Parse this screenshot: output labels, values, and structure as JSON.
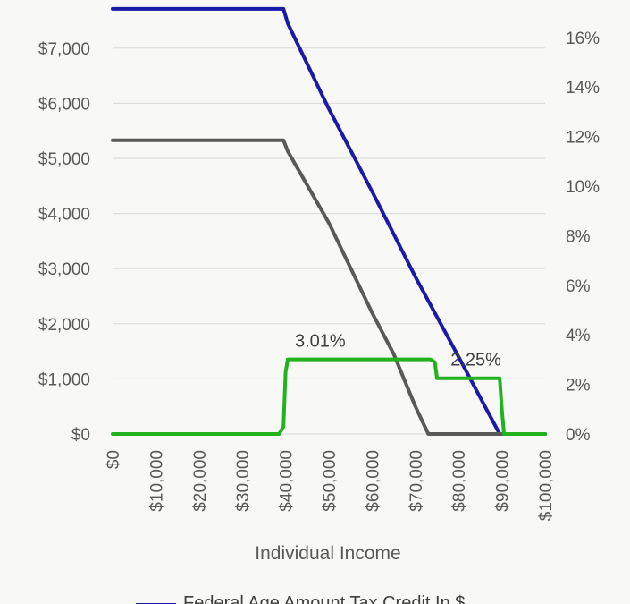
{
  "chart_data": {
    "type": "line",
    "xlabel": "Individual Income",
    "x_ticks": [
      "$0",
      "$10,000",
      "$20,000",
      "$30,000",
      "$40,000",
      "$50,000",
      "$60,000",
      "$70,000",
      "$80,000",
      "$90,000",
      "$100,000"
    ],
    "xlim": [
      0,
      100000
    ],
    "y_left": {
      "ticks": [
        "$0",
        "$1,000",
        "$2,000",
        "$3,000",
        "$4,000",
        "$5,000",
        "$6,000",
        "$7,000"
      ],
      "ylim": [
        0,
        8000
      ]
    },
    "y_right": {
      "ticks": [
        "0%",
        "2%",
        "4%",
        "6%",
        "8%",
        "10%",
        "12%",
        "14%",
        "16%"
      ],
      "ylim": [
        0,
        17.6
      ]
    },
    "grid": "horizontal",
    "legend_position": "bottom",
    "series": [
      {
        "name": "Federal Age Amount Tax Credit In $",
        "axis": "left",
        "color": "#1a1aa6",
        "points": [
          [
            0,
            7713
          ],
          [
            39500,
            7713
          ],
          [
            40500,
            7450
          ],
          [
            46000,
            6550
          ],
          [
            50000,
            5900
          ],
          [
            60000,
            4400
          ],
          [
            70000,
            2850
          ],
          [
            80000,
            1400
          ],
          [
            88000,
            220
          ],
          [
            89500,
            0
          ],
          [
            100000,
            0
          ]
        ]
      },
      {
        "name": "",
        "axis": "left",
        "color": "#595959",
        "points": [
          [
            0,
            5330
          ],
          [
            39500,
            5330
          ],
          [
            40500,
            5130
          ],
          [
            50000,
            3830
          ],
          [
            60000,
            2200
          ],
          [
            65000,
            1450
          ],
          [
            70000,
            500
          ],
          [
            73000,
            0
          ],
          [
            100000,
            0
          ]
        ]
      },
      {
        "name": "",
        "axis": "right",
        "color": "#22b21e",
        "points": [
          [
            0,
            0
          ],
          [
            38500,
            0
          ],
          [
            39500,
            0.3
          ],
          [
            40000,
            2.5
          ],
          [
            40500,
            3.01
          ],
          [
            73500,
            3.01
          ],
          [
            74500,
            2.9
          ],
          [
            75000,
            2.25
          ],
          [
            89500,
            2.25
          ],
          [
            90000,
            1.0
          ],
          [
            90500,
            0
          ],
          [
            100000,
            0
          ]
        ],
        "labels": [
          {
            "x": 48000,
            "text": "3.01%"
          },
          {
            "x": 84000,
            "text": "2.25%"
          }
        ]
      }
    ]
  }
}
